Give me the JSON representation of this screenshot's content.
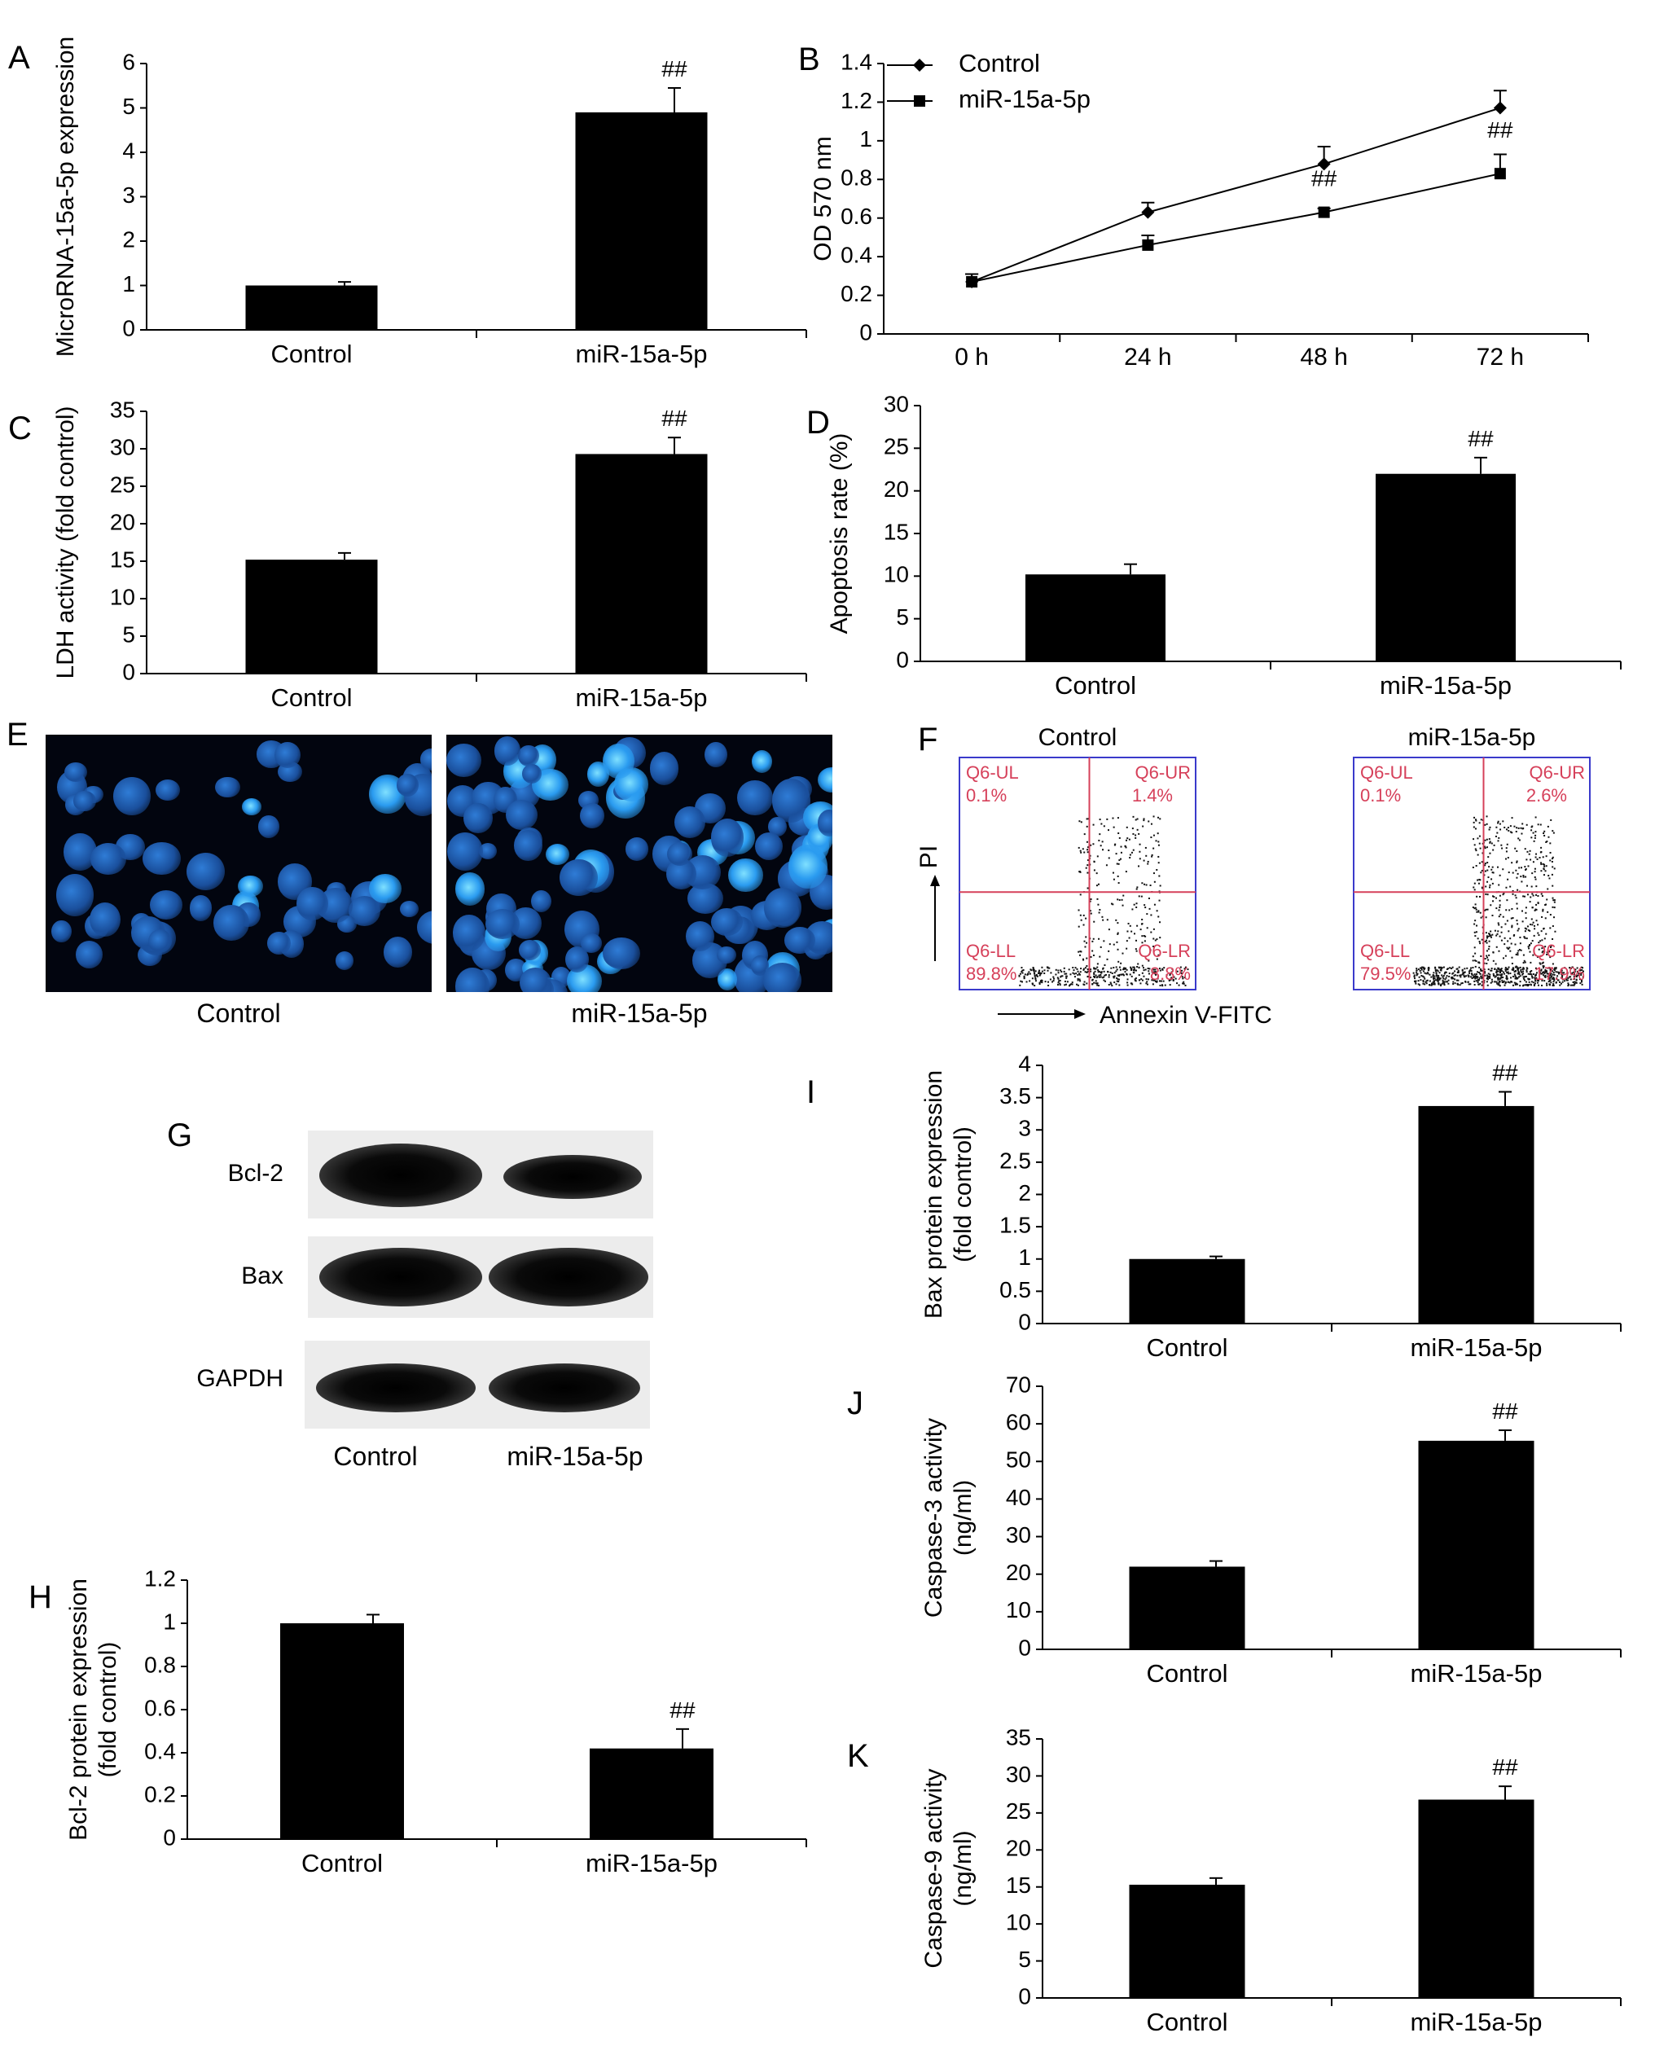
{
  "panels": {
    "A": {
      "letter": "A"
    },
    "B": {
      "letter": "B"
    },
    "C": {
      "letter": "C"
    },
    "D": {
      "letter": "D"
    },
    "E": {
      "letter": "E",
      "captions": [
        "Control",
        "miR-15a-5p"
      ]
    },
    "F": {
      "letter": "F",
      "titles": [
        "Control",
        "miR-15a-5p"
      ],
      "y_axis": "PI",
      "x_axis": "Annexin V-FITC",
      "quadrants": [
        {
          "ul": "Q6-UL",
          "ul_val": "0.1%",
          "ur": "Q6-UR",
          "ur_val": "1.4%",
          "ll": "Q6-LL",
          "ll_val": "89.8%",
          "lr": "Q6-LR",
          "lr_val": "8.8%"
        },
        {
          "ul": "Q6-UL",
          "ul_val": "0.1%",
          "ur": "Q6-UR",
          "ur_val": "2.6%",
          "ll": "Q6-LL",
          "ll_val": "79.5%",
          "lr": "Q6-LR",
          "lr_val": "17.9%"
        }
      ],
      "colors": {
        "frame": "#3a3acb",
        "gate": "#d6405a"
      }
    },
    "G": {
      "letter": "G",
      "rows": [
        "Bcl-2",
        "Bax",
        "GAPDH"
      ],
      "lanes": [
        "Control",
        "miR-15a-5p"
      ]
    },
    "H": {
      "letter": "H"
    },
    "I": {
      "letter": "I"
    },
    "J": {
      "letter": "J"
    },
    "K": {
      "letter": "K"
    }
  },
  "chart_data": [
    {
      "id": "A",
      "type": "bar",
      "categories": [
        "Control",
        "miR-15a-5p"
      ],
      "values": [
        1.0,
        4.9
      ],
      "errors": [
        0.08,
        0.55
      ],
      "annotations": [
        "",
        "##"
      ],
      "ylabel": "MicroRNA-15a-5p expression",
      "ylim": [
        0,
        6
      ],
      "yticks": [
        0,
        1,
        2,
        3,
        4,
        5,
        6
      ]
    },
    {
      "id": "B",
      "type": "line",
      "x": [
        "0 h",
        "24 h",
        "48 h",
        "72 h"
      ],
      "series": [
        {
          "name": "Control",
          "marker": "diamond",
          "values": [
            0.27,
            0.63,
            0.88,
            1.17
          ],
          "errors": [
            0.04,
            0.05,
            0.09,
            0.09
          ]
        },
        {
          "name": "miR-15a-5p",
          "marker": "square",
          "values": [
            0.27,
            0.46,
            0.63,
            0.83
          ],
          "errors": [
            0.04,
            0.05,
            0.02,
            0.1
          ]
        }
      ],
      "annotations": [
        {
          "x": "48 h",
          "text": "##"
        },
        {
          "x": "72 h",
          "text": "##"
        }
      ],
      "ylabel": "OD 570 nm",
      "ylim": [
        0,
        1.4
      ],
      "yticks": [
        0,
        0.2,
        0.4,
        0.6,
        0.8,
        1,
        1.2,
        1.4
      ],
      "legend": "top-left"
    },
    {
      "id": "C",
      "type": "bar",
      "categories": [
        "Control",
        "miR-15a-5p"
      ],
      "values": [
        15.2,
        29.3
      ],
      "errors": [
        0.9,
        2.2
      ],
      "annotations": [
        "",
        "##"
      ],
      "ylabel": "LDH activity (fold control)",
      "ylim": [
        0,
        35
      ],
      "yticks": [
        0,
        5,
        10,
        15,
        20,
        25,
        30,
        35
      ]
    },
    {
      "id": "D",
      "type": "bar",
      "categories": [
        "Control",
        "miR-15a-5p"
      ],
      "values": [
        10.2,
        22.0
      ],
      "errors": [
        1.2,
        1.9
      ],
      "annotations": [
        "",
        "##"
      ],
      "ylabel": "Apoptosis rate (%)",
      "ylim": [
        0,
        30
      ],
      "yticks": [
        0,
        5,
        10,
        15,
        20,
        25,
        30
      ]
    },
    {
      "id": "H",
      "type": "bar",
      "categories": [
        "Control",
        "miR-15a-5p"
      ],
      "values": [
        1.0,
        0.42
      ],
      "errors": [
        0.04,
        0.09
      ],
      "annotations": [
        "",
        "##"
      ],
      "ylabel": "Bcl-2 protein expression\n(fold control)",
      "ylim": [
        0,
        1.2
      ],
      "yticks": [
        0,
        0.2,
        0.4,
        0.6,
        0.8,
        1,
        1.2
      ]
    },
    {
      "id": "I",
      "type": "bar",
      "categories": [
        "Control",
        "miR-15a-5p"
      ],
      "values": [
        1.0,
        3.37
      ],
      "errors": [
        0.04,
        0.22
      ],
      "annotations": [
        "",
        "##"
      ],
      "ylabel": "Bax protein expression\n(fold control)",
      "ylim": [
        0,
        4
      ],
      "yticks": [
        0,
        0.5,
        1,
        1.5,
        2,
        2.5,
        3,
        3.5,
        4
      ]
    },
    {
      "id": "J",
      "type": "bar",
      "categories": [
        "Control",
        "miR-15a-5p"
      ],
      "values": [
        22,
        55.5
      ],
      "errors": [
        1.5,
        2.8
      ],
      "annotations": [
        "",
        "##"
      ],
      "ylabel": "Caspase-3 activity\n(ng/ml)",
      "ylim": [
        0,
        70
      ],
      "yticks": [
        0,
        10,
        20,
        30,
        40,
        50,
        60,
        70
      ]
    },
    {
      "id": "K",
      "type": "bar",
      "categories": [
        "Control",
        "miR-15a-5p"
      ],
      "values": [
        15.3,
        26.8
      ],
      "errors": [
        0.9,
        1.8
      ],
      "annotations": [
        "",
        "##"
      ],
      "ylabel": "Caspase-9 activity\n(ng/ml)",
      "ylim": [
        0,
        35
      ],
      "yticks": [
        0,
        5,
        10,
        15,
        20,
        25,
        30,
        35
      ]
    }
  ]
}
